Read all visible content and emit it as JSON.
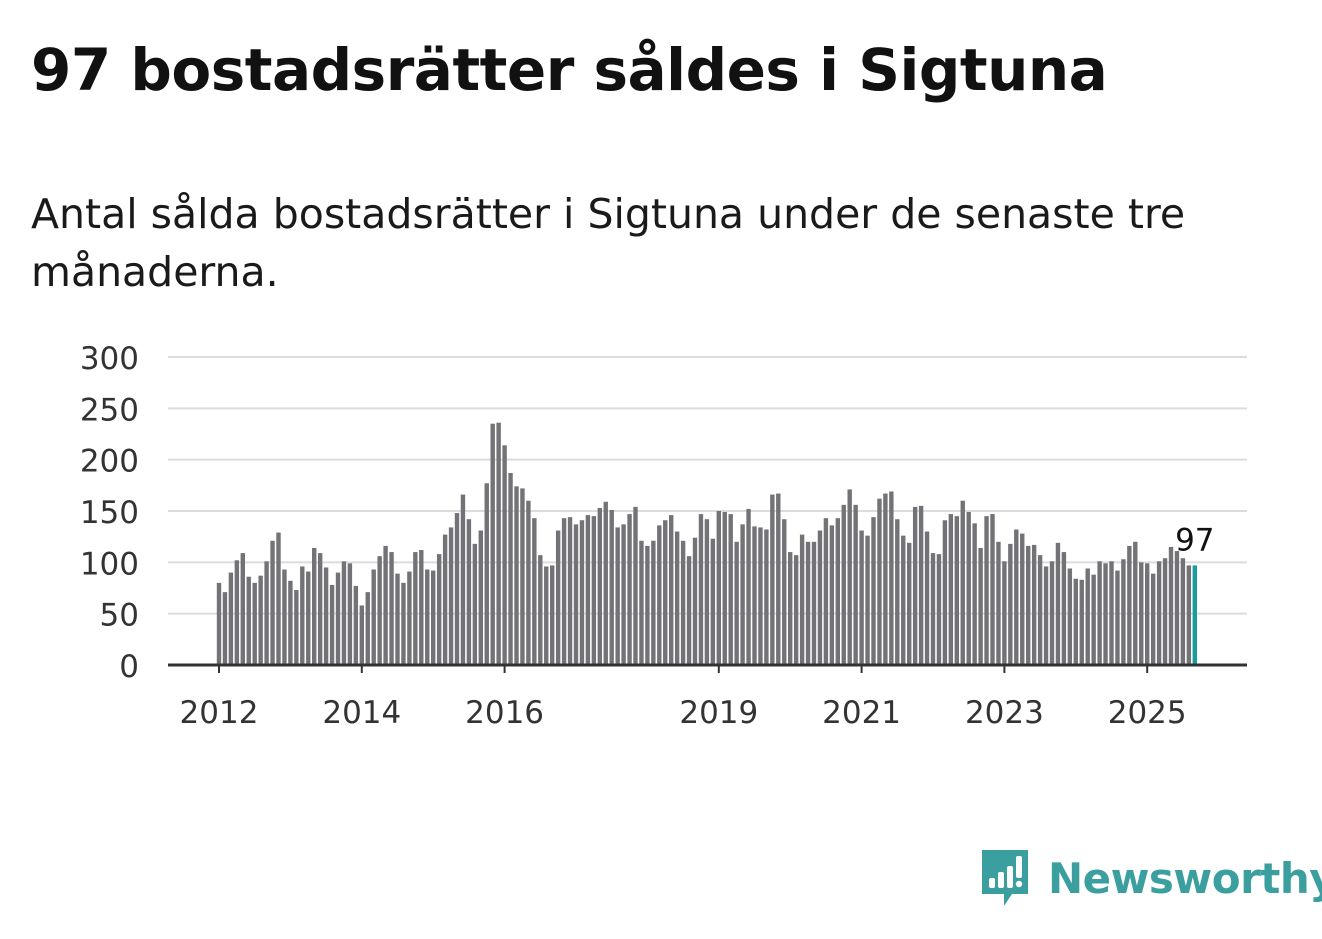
{
  "title": "97 bostadsrätter såldes i Sigtuna",
  "subtitle": "Antal sålda bostadsrätter i Sigtuna under de senaste tre månaderna.",
  "brand": {
    "name": "Newsworthy",
    "color": "#3b9fa0",
    "icon": "newsworthy-logo-icon"
  },
  "colors": {
    "bar": "#737377",
    "highlight": "#1a9c9c",
    "grid": "#dcdcdc",
    "axis": "#333333"
  },
  "chart_data": {
    "type": "bar",
    "title": "Antal sålda bostadsrätter i Sigtuna",
    "xlabel": "",
    "ylabel": "",
    "ylim": [
      0,
      300
    ],
    "yticks": [
      0,
      50,
      100,
      150,
      200,
      250,
      300
    ],
    "start_month": "2012-01",
    "xticks": [
      "2012",
      "2014",
      "2016",
      "2019",
      "2021",
      "2023",
      "2025"
    ],
    "highlight_label": "97",
    "values": [
      80,
      71,
      90,
      102,
      109,
      86,
      80,
      87,
      101,
      121,
      129,
      93,
      82,
      73,
      96,
      91,
      114,
      109,
      95,
      78,
      90,
      101,
      99,
      77,
      58,
      71,
      93,
      106,
      116,
      110,
      89,
      80,
      91,
      110,
      112,
      93,
      92,
      108,
      127,
      134,
      148,
      166,
      142,
      118,
      131,
      177,
      235,
      236,
      214,
      187,
      174,
      172,
      160,
      143,
      107,
      96,
      97,
      131,
      143,
      144,
      137,
      141,
      146,
      145,
      153,
      159,
      151,
      134,
      137,
      147,
      154,
      121,
      116,
      121,
      136,
      141,
      146,
      130,
      121,
      106,
      124,
      147,
      142,
      123,
      150,
      149,
      147,
      120,
      137,
      152,
      135,
      134,
      132,
      166,
      167,
      142,
      110,
      107,
      127,
      120,
      120,
      131,
      143,
      136,
      143,
      156,
      171,
      156,
      131,
      126,
      144,
      162,
      167,
      169,
      142,
      126,
      119,
      154,
      155,
      130,
      109,
      108,
      141,
      147,
      145,
      160,
      149,
      138,
      114,
      145,
      147,
      120,
      101,
      118,
      132,
      128,
      116,
      117,
      107,
      96,
      101,
      119,
      110,
      94,
      84,
      83,
      94,
      88,
      101,
      99,
      101,
      92,
      103,
      116,
      120,
      100,
      99,
      89,
      101,
      104,
      115,
      111,
      104,
      97,
      97
    ]
  }
}
